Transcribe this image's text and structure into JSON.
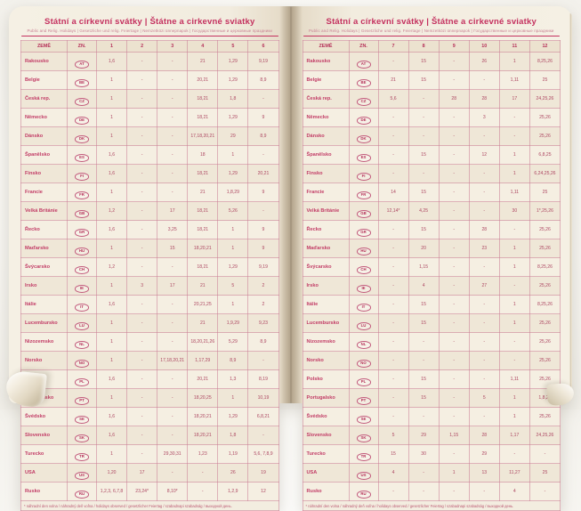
{
  "title": "Státní a církevní svátky | Štátne a cirkevné sviatky",
  "subtitle": "Public and Relig. Holidays | Gesetzliche und relig. Feiertage | Nemzetközi ünnepnapok | Государственные и церковные праздники",
  "footnote": "* náhradní den volna / náhradný deň voľna / holidays observed / gesetzlicher Feiertag / szabadnapi szabadság / выходной день.",
  "colors": {
    "accent_pink": "#c4315f",
    "value_text": "#ad4762",
    "grid_line": "#cb7d96",
    "page_cream": "#f2ecdf"
  },
  "left_table": {
    "headers": [
      "ZEMĚ",
      "ZN.",
      "1",
      "2",
      "3",
      "4",
      "5",
      "6"
    ],
    "rows": [
      {
        "country": "Rakousko",
        "code": "AT",
        "months": [
          "1,6",
          "-",
          "-",
          "21",
          "1,29",
          "9,19"
        ]
      },
      {
        "country": "Belgie",
        "code": "BE",
        "months": [
          "1",
          "-",
          "-",
          "20,21",
          "1,29",
          "8,9"
        ]
      },
      {
        "country": "Česká rep.",
        "code": "CZ",
        "months": [
          "1",
          "-",
          "-",
          "18,21",
          "1,8",
          "-"
        ]
      },
      {
        "country": "Německo",
        "code": "DE",
        "months": [
          "1",
          "-",
          "-",
          "18,21",
          "1,29",
          "9"
        ]
      },
      {
        "country": "Dánsko",
        "code": "DK",
        "months": [
          "1",
          "-",
          "-",
          "17,18,20,21",
          "29",
          "8,9"
        ]
      },
      {
        "country": "Španělsko",
        "code": "ES",
        "months": [
          "1,6",
          "-",
          "-",
          "18",
          "1",
          "-"
        ]
      },
      {
        "country": "Finsko",
        "code": "FI",
        "months": [
          "1,6",
          "-",
          "-",
          "18,21",
          "1,29",
          "20,21"
        ]
      },
      {
        "country": "Francie",
        "code": "FR",
        "months": [
          "1",
          "-",
          "-",
          "21",
          "1,8,29",
          "9"
        ]
      },
      {
        "country": "Velká Británie",
        "code": "GB",
        "months": [
          "1,2",
          "-",
          "17",
          "18,21",
          "5,26",
          "-"
        ]
      },
      {
        "country": "Řecko",
        "code": "GR",
        "months": [
          "1,6",
          "-",
          "3,25",
          "18,21",
          "1",
          "9"
        ]
      },
      {
        "country": "Maďarsko",
        "code": "HU",
        "months": [
          "1",
          "-",
          "15",
          "18,20,21",
          "1",
          "9"
        ]
      },
      {
        "country": "Švýcarsko",
        "code": "CH",
        "months": [
          "1,2",
          "-",
          "-",
          "18,21",
          "1,29",
          "9,19"
        ]
      },
      {
        "country": "Irsko",
        "code": "IE",
        "months": [
          "1",
          "3",
          "17",
          "21",
          "5",
          "2"
        ]
      },
      {
        "country": "Itálie",
        "code": "IT",
        "months": [
          "1,6",
          "-",
          "-",
          "20,21,25",
          "1",
          "2"
        ]
      },
      {
        "country": "Lucembursko",
        "code": "LU",
        "months": [
          "1",
          "-",
          "-",
          "21",
          "1,9,29",
          "9,23"
        ]
      },
      {
        "country": "Nizozemsko",
        "code": "NL",
        "months": [
          "1",
          "-",
          "-",
          "18,20,21,26",
          "5,29",
          "8,9"
        ]
      },
      {
        "country": "Norsko",
        "code": "NO",
        "months": [
          "1",
          "-",
          "17,18,20,21",
          "1,17,29",
          "8,9",
          "-"
        ]
      },
      {
        "country": "Polsko",
        "code": "PL",
        "months": [
          "1,6",
          "-",
          "-",
          "20,21",
          "1,3",
          "8,19"
        ]
      },
      {
        "country": "Portugalsko",
        "code": "PT",
        "months": [
          "1",
          "-",
          "-",
          "18,20,25",
          "1",
          "10,19"
        ]
      },
      {
        "country": "Švédsko",
        "code": "SE",
        "months": [
          "1,6",
          "-",
          "-",
          "18,20,21",
          "1,29",
          "6,8,21"
        ]
      },
      {
        "country": "Slovensko",
        "code": "SK",
        "months": [
          "1,6",
          "-",
          "-",
          "18,20,21",
          "1,8",
          "-"
        ]
      },
      {
        "country": "Turecko",
        "code": "TR",
        "months": [
          "1",
          "-",
          "29,30,31",
          "1,23",
          "1,19",
          "5,6, 7,8,9"
        ]
      },
      {
        "country": "USA",
        "code": "US",
        "months": [
          "1,20",
          "17",
          "-",
          "-",
          "26",
          "19"
        ]
      },
      {
        "country": "Rusko",
        "code": "RU",
        "months": [
          "1,2,3, 6,7,8",
          "23,24*",
          "8,10*",
          "-",
          "1,2,9",
          "12"
        ]
      }
    ]
  },
  "right_table": {
    "headers": [
      "ZEMĚ",
      "ZN.",
      "7",
      "8",
      "9",
      "10",
      "11",
      "12"
    ],
    "rows": [
      {
        "country": "Rakousko",
        "code": "AT",
        "months": [
          "-",
          "15",
          "-",
          "26",
          "1",
          "8,25,26"
        ]
      },
      {
        "country": "Belgie",
        "code": "BE",
        "months": [
          "21",
          "15",
          "-",
          "-",
          "1,11",
          "25"
        ]
      },
      {
        "country": "Česká rep.",
        "code": "CZ",
        "months": [
          "5,6",
          "-",
          "28",
          "28",
          "17",
          "24,25,26"
        ]
      },
      {
        "country": "Německo",
        "code": "DE",
        "months": [
          "-",
          "-",
          "-",
          "3",
          "-",
          "25,26"
        ]
      },
      {
        "country": "Dánsko",
        "code": "DK",
        "months": [
          "-",
          "-",
          "-",
          "-",
          "-",
          "25,26"
        ]
      },
      {
        "country": "Španělsko",
        "code": "ES",
        "months": [
          "-",
          "15",
          "-",
          "12",
          "1",
          "6,8,25"
        ]
      },
      {
        "country": "Finsko",
        "code": "FI",
        "months": [
          "-",
          "-",
          "-",
          "-",
          "1",
          "6,24,25,26"
        ]
      },
      {
        "country": "Francie",
        "code": "FR",
        "months": [
          "14",
          "15",
          "-",
          "-",
          "1,11",
          "25"
        ]
      },
      {
        "country": "Velká Británie",
        "code": "GB",
        "months": [
          "12,14*",
          "4,25",
          "-",
          "-",
          "30",
          "1*,25,26"
        ]
      },
      {
        "country": "Řecko",
        "code": "GR",
        "months": [
          "-",
          "15",
          "-",
          "28",
          "-",
          "25,26"
        ]
      },
      {
        "country": "Maďarsko",
        "code": "HU",
        "months": [
          "-",
          "20",
          "-",
          "23",
          "1",
          "25,26"
        ]
      },
      {
        "country": "Švýcarsko",
        "code": "CH",
        "months": [
          "-",
          "1,15",
          "-",
          "-",
          "1",
          "8,25,26"
        ]
      },
      {
        "country": "Irsko",
        "code": "IE",
        "months": [
          "-",
          "4",
          "-",
          "27",
          "-",
          "25,26"
        ]
      },
      {
        "country": "Itálie",
        "code": "IT",
        "months": [
          "-",
          "15",
          "-",
          "-",
          "1",
          "8,25,26"
        ]
      },
      {
        "country": "Lucembursko",
        "code": "LU",
        "months": [
          "-",
          "15",
          "-",
          "-",
          "1",
          "25,26"
        ]
      },
      {
        "country": "Nizozemsko",
        "code": "NL",
        "months": [
          "-",
          "-",
          "-",
          "-",
          "-",
          "25,26"
        ]
      },
      {
        "country": "Norsko",
        "code": "NO",
        "months": [
          "-",
          "-",
          "-",
          "-",
          "-",
          "25,26"
        ]
      },
      {
        "country": "Polsko",
        "code": "PL",
        "months": [
          "-",
          "15",
          "-",
          "-",
          "1,11",
          "25,26"
        ]
      },
      {
        "country": "Portugalsko",
        "code": "PT",
        "months": [
          "-",
          "15",
          "-",
          "5",
          "1",
          "1,8,25"
        ]
      },
      {
        "country": "Švédsko",
        "code": "SE",
        "months": [
          "-",
          "-",
          "-",
          "-",
          "1",
          "25,26"
        ]
      },
      {
        "country": "Slovensko",
        "code": "SK",
        "months": [
          "5",
          "29",
          "1,15",
          "28",
          "1,17",
          "24,25,26"
        ]
      },
      {
        "country": "Turecko",
        "code": "TR",
        "months": [
          "15",
          "30",
          "-",
          "29",
          "-",
          "-"
        ]
      },
      {
        "country": "USA",
        "code": "US",
        "months": [
          "4",
          "-",
          "1",
          "13",
          "11,27",
          "25"
        ]
      },
      {
        "country": "Rusko",
        "code": "RU",
        "months": [
          "-",
          "-",
          "-",
          "-",
          "4",
          "-"
        ]
      }
    ]
  }
}
